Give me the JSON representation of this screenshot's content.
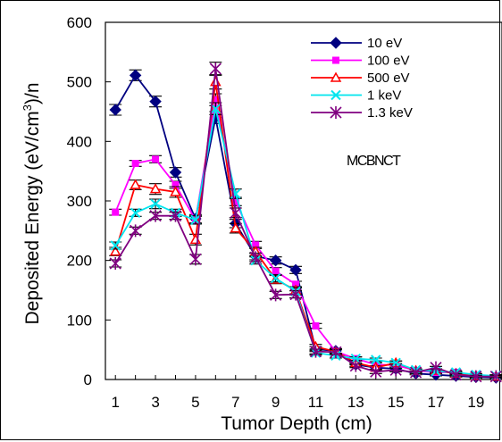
{
  "chart_data": {
    "type": "line",
    "title": "",
    "xlabel": "Tumor Depth (cm)",
    "ylabel_main": "Deposited Energy (eV/cm",
    "ylabel_sup": "3",
    "ylabel_tail": ")/n",
    "xlim": [
      0.5,
      20.3
    ],
    "ylim": [
      0,
      600
    ],
    "x_ticks": [
      1,
      3,
      5,
      7,
      9,
      11,
      13,
      15,
      17,
      19
    ],
    "x_tick_labels": [
      "1",
      "3",
      "5",
      "7",
      "9",
      "11",
      "13",
      "15",
      "17",
      "19"
    ],
    "y_ticks": [
      0,
      100,
      200,
      300,
      400,
      500,
      600
    ],
    "y_tick_labels": [
      "0",
      "100",
      "200",
      "300",
      "400",
      "500",
      "600"
    ],
    "grid": false,
    "legend_position": "top-right",
    "annotation": "MCBNCT",
    "x": [
      1,
      2,
      3,
      4,
      5,
      6,
      7,
      8,
      9,
      10,
      11,
      12,
      13,
      14,
      15,
      16,
      17,
      18,
      19,
      20
    ],
    "series": [
      {
        "name": "10 eV",
        "color": "#000080",
        "marker": "diamond",
        "values": [
          453,
          511,
          467,
          348,
          270,
          440,
          262,
          207,
          200,
          184,
          51,
          48,
          25,
          20,
          18,
          10,
          8,
          6,
          4,
          3
        ],
        "errors": [
          9,
          9,
          9,
          8,
          7,
          10,
          7,
          6,
          6,
          6,
          4,
          4,
          3,
          3,
          3,
          2,
          2,
          2,
          2,
          2
        ]
      },
      {
        "name": "100 eV",
        "color": "#ff00ff",
        "marker": "square",
        "values": [
          281,
          363,
          370,
          327,
          268,
          470,
          299,
          226,
          182,
          160,
          90,
          47,
          35,
          25,
          24,
          15,
          12,
          12,
          7,
          6
        ],
        "errors": [
          5,
          5,
          6,
          6,
          6,
          10,
          7,
          6,
          6,
          5,
          4,
          4,
          3,
          3,
          3,
          2,
          2,
          2,
          2,
          2
        ]
      },
      {
        "name": "500 eV",
        "color": "#ff0000",
        "marker": "triangle",
        "values": [
          215,
          327,
          320,
          315,
          235,
          500,
          254,
          215,
          168,
          150,
          55,
          47,
          28,
          20,
          28,
          15,
          15,
          10,
          6,
          5
        ],
        "errors": [
          7,
          8,
          9,
          9,
          9,
          12,
          8,
          7,
          7,
          6,
          4,
          4,
          3,
          3,
          3,
          2,
          2,
          2,
          2,
          2
        ]
      },
      {
        "name": "1 keV",
        "color": "#00e5ee",
        "marker": "x",
        "values": [
          225,
          280,
          295,
          280,
          268,
          455,
          312,
          200,
          170,
          148,
          45,
          40,
          35,
          33,
          28,
          16,
          14,
          12,
          8,
          6
        ],
        "errors": [
          6,
          6,
          8,
          6,
          7,
          10,
          8,
          6,
          6,
          6,
          4,
          4,
          3,
          3,
          3,
          2,
          2,
          2,
          2,
          2
        ]
      },
      {
        "name": "1.3 keV",
        "color": "#800080",
        "marker": "star",
        "values": [
          195,
          250,
          275,
          275,
          202,
          522,
          280,
          205,
          142,
          143,
          47,
          46,
          23,
          13,
          16,
          12,
          20,
          8,
          5,
          5
        ],
        "errors": [
          6,
          6,
          6,
          6,
          8,
          11,
          8,
          7,
          6,
          6,
          4,
          4,
          3,
          3,
          3,
          2,
          2,
          2,
          2,
          2
        ]
      }
    ]
  }
}
